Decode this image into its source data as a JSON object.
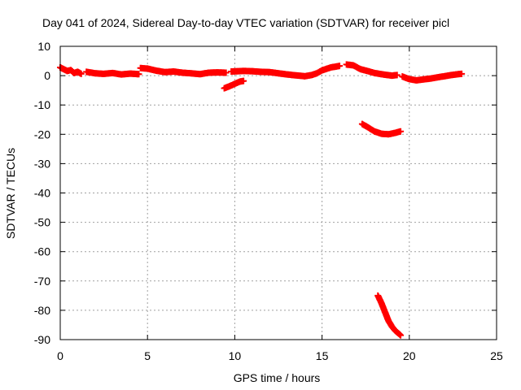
{
  "chart_data": {
    "type": "scatter",
    "title": "Day 041 of 2024, Sidereal Day-to-day VTEC variation (SDTVAR) for receiver picl",
    "xlabel": "GPS time / hours",
    "ylabel": "SDTVAR / TECUs",
    "xlim": [
      0,
      25
    ],
    "ylim": [
      -90,
      10
    ],
    "xticks": [
      0,
      5,
      10,
      15,
      20,
      25
    ],
    "yticks": [
      10,
      0,
      -10,
      -20,
      -30,
      -40,
      -50,
      -60,
      -70,
      -80,
      -90
    ],
    "grid": true,
    "legend": "none",
    "series_color": "#ff0000",
    "segments": [
      {
        "name": "main-band-1",
        "points": [
          [
            0.0,
            2.8
          ],
          [
            0.2,
            2.2
          ],
          [
            0.4,
            1.6
          ],
          [
            0.6,
            1.9
          ],
          [
            0.8,
            0.9
          ],
          [
            1.0,
            1.3
          ],
          [
            1.2,
            0.6
          ]
        ]
      },
      {
        "name": "main-band-2",
        "points": [
          [
            1.5,
            1.3
          ],
          [
            2.0,
            0.8
          ],
          [
            2.5,
            0.6
          ],
          [
            3.0,
            0.9
          ],
          [
            3.5,
            0.4
          ],
          [
            4.0,
            0.7
          ],
          [
            4.5,
            0.5
          ]
        ]
      },
      {
        "name": "main-band-3",
        "points": [
          [
            4.6,
            2.6
          ],
          [
            5.0,
            2.4
          ],
          [
            5.5,
            1.7
          ],
          [
            6.0,
            1.2
          ],
          [
            6.5,
            1.4
          ],
          [
            7.0,
            1.0
          ],
          [
            7.5,
            0.8
          ],
          [
            8.0,
            0.5
          ],
          [
            8.5,
            1.0
          ],
          [
            9.0,
            1.1
          ],
          [
            9.5,
            1.0
          ]
        ]
      },
      {
        "name": "main-band-4",
        "points": [
          [
            9.8,
            1.4
          ],
          [
            10.5,
            1.6
          ],
          [
            11.0,
            1.5
          ],
          [
            11.5,
            1.3
          ],
          [
            12.0,
            1.2
          ],
          [
            12.5,
            0.8
          ],
          [
            13.0,
            0.4
          ],
          [
            13.5,
            0.1
          ],
          [
            14.0,
            -0.2
          ],
          [
            14.4,
            0.2
          ],
          [
            14.7,
            0.8
          ],
          [
            15.0,
            1.8
          ],
          [
            15.5,
            2.8
          ],
          [
            16.0,
            3.3
          ]
        ]
      },
      {
        "name": "main-band-5",
        "points": [
          [
            16.4,
            3.8
          ],
          [
            16.8,
            3.5
          ],
          [
            17.2,
            2.2
          ],
          [
            17.6,
            1.6
          ],
          [
            18.0,
            0.9
          ],
          [
            18.5,
            0.4
          ],
          [
            19.0,
            0.0
          ],
          [
            19.3,
            0.2
          ]
        ]
      },
      {
        "name": "main-band-6",
        "points": [
          [
            19.6,
            -0.3
          ],
          [
            20.0,
            -1.2
          ],
          [
            20.4,
            -1.6
          ],
          [
            20.8,
            -1.3
          ],
          [
            21.2,
            -1.0
          ],
          [
            21.6,
            -0.6
          ],
          [
            22.0,
            -0.2
          ],
          [
            22.4,
            0.2
          ],
          [
            22.8,
            0.5
          ],
          [
            23.0,
            0.6
          ]
        ]
      },
      {
        "name": "short-dip",
        "points": [
          [
            9.4,
            -4.3
          ],
          [
            9.7,
            -3.6
          ],
          [
            10.0,
            -2.8
          ],
          [
            10.3,
            -2.0
          ],
          [
            10.5,
            -1.8
          ]
        ]
      },
      {
        "name": "mid-dip",
        "points": [
          [
            17.3,
            -16.5
          ],
          [
            17.6,
            -17.5
          ],
          [
            18.0,
            -19.0
          ],
          [
            18.4,
            -19.8
          ],
          [
            18.8,
            -20.0
          ],
          [
            19.2,
            -19.5
          ],
          [
            19.5,
            -19.0
          ]
        ]
      },
      {
        "name": "deep-dip",
        "points": [
          [
            18.2,
            -75.0
          ],
          [
            18.4,
            -77.5
          ],
          [
            18.6,
            -80.5
          ],
          [
            18.8,
            -83.5
          ],
          [
            19.0,
            -85.5
          ],
          [
            19.2,
            -87.0
          ],
          [
            19.5,
            -88.5
          ]
        ]
      }
    ]
  }
}
